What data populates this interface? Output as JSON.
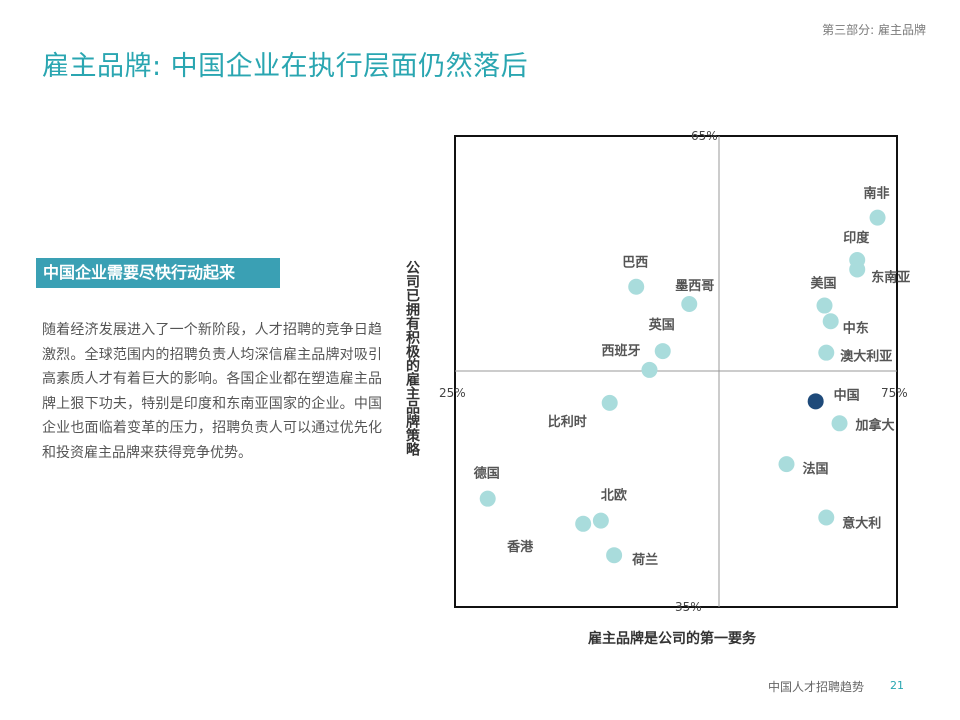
{
  "header": {
    "section": "第三部分: 雇主品牌",
    "title": "雇主品牌: 中国企业在执行层面仍然落后"
  },
  "callout": {
    "heading": "中国企业需要尽快行动起来",
    "body": "随着经济发展进入了一个新阶段，人才招聘的竞争日趋激烈。全球范围内的招聘负责人均深信雇主品牌对吸引高素质人才有着巨大的影响。各国企业都在塑造雇主品牌上狠下功夫，特别是印度和东南亚国家的企业。中国企业也面临着变革的压力，招聘负责人可以通过优先化和投资雇主品牌来获得竞争优势。"
  },
  "footer": {
    "text": "中国人才招聘趋势",
    "page": "21"
  },
  "colors": {
    "accent": "#2aa6b1",
    "point": "#a9dcdc",
    "highlight": "#1e4a7a"
  },
  "chart_data": {
    "type": "scatter",
    "xlabel": "雇主品牌是公司的第一要务",
    "ylabel": "公司已拥有积极的雇主品牌策略",
    "xlim": [
      25,
      75
    ],
    "ylim": [
      35,
      65
    ],
    "x_ticks": [
      "25%",
      "75%"
    ],
    "y_ticks": [
      "65%",
      "35%"
    ],
    "grid": false,
    "points": [
      {
        "name": "南非",
        "x": 72.8,
        "y": 59.8
      },
      {
        "name": "印度",
        "x": 70.5,
        "y": 57.1
      },
      {
        "name": "东南亚",
        "x": 70.5,
        "y": 56.5
      },
      {
        "name": "巴西",
        "x": 45.5,
        "y": 55.4
      },
      {
        "name": "墨西哥",
        "x": 51.5,
        "y": 54.3
      },
      {
        "name": "美国",
        "x": 66.8,
        "y": 54.2
      },
      {
        "name": "中东",
        "x": 67.5,
        "y": 53.2
      },
      {
        "name": "英国",
        "x": 48.5,
        "y": 51.3
      },
      {
        "name": "澳大利亚",
        "x": 67.0,
        "y": 51.2
      },
      {
        "name": "西班牙",
        "x": 47.0,
        "y": 50.1
      },
      {
        "name": "中国",
        "x": 65.8,
        "y": 48.1,
        "highlight": true
      },
      {
        "name": "比利时",
        "x": 42.5,
        "y": 48.0
      },
      {
        "name": "加拿大",
        "x": 68.5,
        "y": 46.7
      },
      {
        "name": "法国",
        "x": 62.5,
        "y": 44.1
      },
      {
        "name": "德国",
        "x": 28.7,
        "y": 41.9
      },
      {
        "name": "北欧",
        "x": 41.5,
        "y": 40.5
      },
      {
        "name": "香港",
        "x": 39.5,
        "y": 40.3
      },
      {
        "name": "意大利",
        "x": 67.0,
        "y": 40.7
      },
      {
        "name": "荷兰",
        "x": 43.0,
        "y": 38.3
      }
    ]
  }
}
